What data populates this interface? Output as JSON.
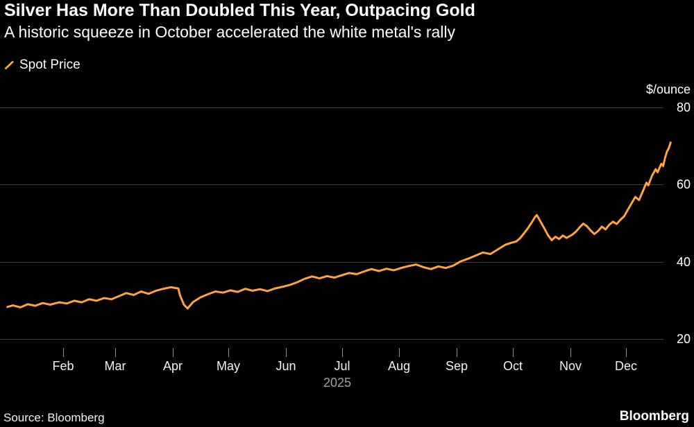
{
  "header": {
    "title": "Silver Has More Than Doubled This Year, Outpacing Gold",
    "subtitle": "A historic squeeze in October accelerated the white metal's rally"
  },
  "legend": {
    "series_label": "Spot Price"
  },
  "axis": {
    "unit_label": "$/ounce",
    "year_label": "2025"
  },
  "footer": {
    "source": "Source: Bloomberg",
    "brand": "Bloomberg"
  },
  "chart_data": {
    "type": "line",
    "title": "Silver Has More Than Doubled This Year, Outpacing Gold",
    "subtitle": "A historic squeeze in October accelerated the white metal's rally",
    "ylabel": "$/ounce",
    "ylim": [
      20,
      80
    ],
    "y_ticks": [
      80,
      60,
      40,
      20
    ],
    "x_tick_labels": [
      "Feb",
      "Mar",
      "Apr",
      "May",
      "Jun",
      "Jul",
      "Aug",
      "Sep",
      "Oct",
      "Nov",
      "Dec"
    ],
    "x_axis_year": "2025",
    "grid": "horizontal",
    "legend_position": "top-left",
    "background": "#000000",
    "source": "Source: Bloomberg",
    "series": [
      {
        "name": "Spot Price",
        "color": "#ffa43b",
        "x_unit": "day-of-year-2025",
        "points": [
          [
            1,
            28.3
          ],
          [
            4,
            28.7
          ],
          [
            8,
            28.2
          ],
          [
            12,
            29.0
          ],
          [
            16,
            28.6
          ],
          [
            20,
            29.3
          ],
          [
            24,
            28.9
          ],
          [
            29,
            29.5
          ],
          [
            33,
            29.2
          ],
          [
            37,
            29.9
          ],
          [
            41,
            29.5
          ],
          [
            45,
            30.3
          ],
          [
            49,
            29.9
          ],
          [
            53,
            30.6
          ],
          [
            57,
            30.3
          ],
          [
            61,
            31.1
          ],
          [
            65,
            31.9
          ],
          [
            69,
            31.4
          ],
          [
            73,
            32.3
          ],
          [
            77,
            31.7
          ],
          [
            81,
            32.5
          ],
          [
            85,
            33.0
          ],
          [
            89,
            33.4
          ],
          [
            93,
            33.1
          ],
          [
            94,
            31.2
          ],
          [
            96,
            28.9
          ],
          [
            98,
            27.9
          ],
          [
            101,
            29.6
          ],
          [
            105,
            30.8
          ],
          [
            109,
            31.6
          ],
          [
            113,
            32.3
          ],
          [
            117,
            32.0
          ],
          [
            121,
            32.6
          ],
          [
            125,
            32.2
          ],
          [
            129,
            33.0
          ],
          [
            133,
            32.5
          ],
          [
            137,
            32.9
          ],
          [
            141,
            32.4
          ],
          [
            145,
            33.1
          ],
          [
            149,
            33.5
          ],
          [
            153,
            34.0
          ],
          [
            157,
            34.7
          ],
          [
            161,
            35.6
          ],
          [
            165,
            36.2
          ],
          [
            169,
            35.7
          ],
          [
            173,
            36.3
          ],
          [
            177,
            35.9
          ],
          [
            181,
            36.5
          ],
          [
            185,
            37.1
          ],
          [
            189,
            36.8
          ],
          [
            193,
            37.5
          ],
          [
            197,
            38.1
          ],
          [
            201,
            37.6
          ],
          [
            205,
            38.2
          ],
          [
            209,
            37.8
          ],
          [
            213,
            38.4
          ],
          [
            217,
            38.9
          ],
          [
            221,
            39.3
          ],
          [
            225,
            38.6
          ],
          [
            229,
            38.1
          ],
          [
            233,
            38.8
          ],
          [
            237,
            38.4
          ],
          [
            241,
            39.0
          ],
          [
            245,
            40.1
          ],
          [
            249,
            40.8
          ],
          [
            253,
            41.6
          ],
          [
            257,
            42.4
          ],
          [
            261,
            42.0
          ],
          [
            265,
            43.2
          ],
          [
            269,
            44.4
          ],
          [
            272,
            44.9
          ],
          [
            275,
            45.3
          ],
          [
            277,
            46.1
          ],
          [
            279,
            47.3
          ],
          [
            281,
            48.6
          ],
          [
            283,
            50.0
          ],
          [
            285,
            51.6
          ],
          [
            286,
            52.1
          ],
          [
            288,
            50.4
          ],
          [
            290,
            48.7
          ],
          [
            292,
            46.9
          ],
          [
            294,
            45.6
          ],
          [
            296,
            46.5
          ],
          [
            298,
            45.9
          ],
          [
            300,
            46.8
          ],
          [
            302,
            46.2
          ],
          [
            305,
            47.0
          ],
          [
            307,
            47.8
          ],
          [
            309,
            48.9
          ],
          [
            311,
            49.9
          ],
          [
            313,
            49.2
          ],
          [
            315,
            48.1
          ],
          [
            317,
            47.2
          ],
          [
            319,
            48.0
          ],
          [
            321,
            49.1
          ],
          [
            323,
            48.4
          ],
          [
            325,
            49.6
          ],
          [
            327,
            50.4
          ],
          [
            329,
            49.8
          ],
          [
            331,
            50.9
          ],
          [
            333,
            51.8
          ],
          [
            335,
            53.5
          ],
          [
            337,
            55.2
          ],
          [
            339,
            56.8
          ],
          [
            341,
            56.0
          ],
          [
            343,
            58.2
          ],
          [
            345,
            60.5
          ],
          [
            346,
            59.8
          ],
          [
            348,
            62.3
          ],
          [
            350,
            64.0
          ],
          [
            351,
            63.2
          ],
          [
            353,
            65.4
          ],
          [
            354,
            64.8
          ],
          [
            355,
            66.9
          ],
          [
            356,
            68.5
          ],
          [
            357,
            69.4
          ],
          [
            358,
            70.9
          ]
        ]
      }
    ]
  }
}
